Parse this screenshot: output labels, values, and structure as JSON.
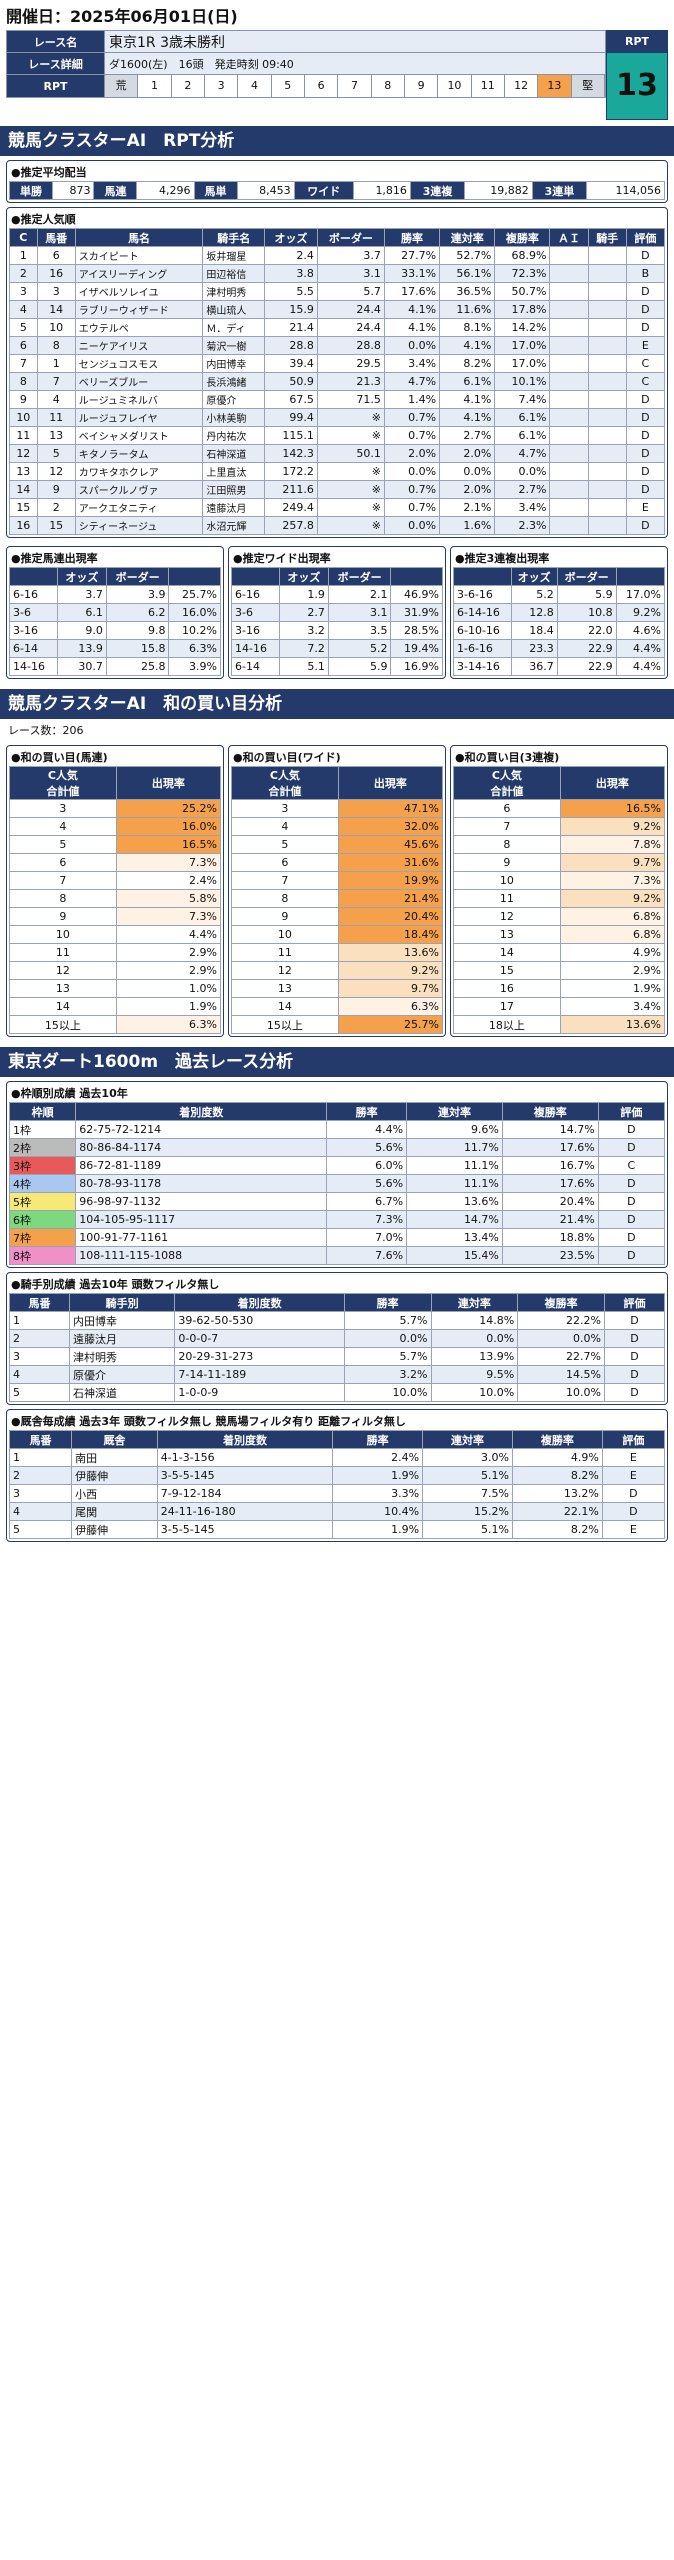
{
  "header": {
    "date": "開催日：2025年06月01日(日)",
    "race_label": "レース名",
    "race_name": "東京1R 3歳未勝利",
    "detail_label": "レース詳細",
    "detail_course": "ダ1600(左)",
    "detail_heads": "16頭",
    "detail_start": "発走時刻 09:40",
    "rpt_label": "RPT",
    "rpt_row": [
      "荒",
      "1",
      "2",
      "3",
      "4",
      "5",
      "6",
      "7",
      "8",
      "9",
      "10",
      "11",
      "12",
      "13",
      "堅"
    ],
    "rpt_value": "13",
    "rpt_highlight_index": 13
  },
  "section1": {
    "title": "競馬クラスターAI　RPT分析",
    "payout_title": "●推定平均配当",
    "payouts": [
      [
        "単勝",
        "873"
      ],
      [
        "馬連",
        "4,296"
      ],
      [
        "馬単",
        "8,453"
      ],
      [
        "ワイド",
        "1,816"
      ],
      [
        "3連複",
        "19,882"
      ],
      [
        "3連単",
        "114,056"
      ]
    ]
  },
  "popularity": {
    "title": "●推定人気順",
    "headers": [
      "C",
      "馬番",
      "馬名",
      "騎手名",
      "オッズ",
      "ボーダー",
      "勝率",
      "連対率",
      "複勝率",
      "ＡＩ",
      "騎手",
      "評価"
    ],
    "rows": [
      [
        "1",
        "6",
        "スカイピート",
        "坂井瑠星",
        "2.4",
        "3.7",
        "27.7%",
        "52.7%",
        "68.9%",
        "",
        "",
        "D"
      ],
      [
        "2",
        "16",
        "アイスリーディング",
        "田辺裕信",
        "3.8",
        "3.1",
        "33.1%",
        "56.1%",
        "72.3%",
        "",
        "",
        "B"
      ],
      [
        "3",
        "3",
        "イザベルソレイユ",
        "津村明秀",
        "5.5",
        "5.7",
        "17.6%",
        "36.5%",
        "50.7%",
        "",
        "",
        "D"
      ],
      [
        "4",
        "14",
        "ラブリーウィザード",
        "横山琉人",
        "15.9",
        "24.4",
        "4.1%",
        "11.6%",
        "17.8%",
        "",
        "",
        "D"
      ],
      [
        "5",
        "10",
        "エウテルペ",
        "Ｍ．ディ",
        "21.4",
        "24.4",
        "4.1%",
        "8.1%",
        "14.2%",
        "",
        "",
        "D"
      ],
      [
        "6",
        "8",
        "ニーケアイリス",
        "菊沢一樹",
        "28.8",
        "28.8",
        "0.0%",
        "4.1%",
        "17.0%",
        "",
        "",
        "E"
      ],
      [
        "7",
        "1",
        "センジュコスモス",
        "内田博幸",
        "39.4",
        "29.5",
        "3.4%",
        "8.2%",
        "17.0%",
        "",
        "",
        "C"
      ],
      [
        "8",
        "7",
        "ベリーズブルー",
        "長浜鴻緒",
        "50.9",
        "21.3",
        "4.7%",
        "6.1%",
        "10.1%",
        "",
        "",
        "C"
      ],
      [
        "9",
        "4",
        "ルージュミネルバ",
        "原優介",
        "67.5",
        "71.5",
        "1.4%",
        "4.1%",
        "7.4%",
        "",
        "",
        "D"
      ],
      [
        "10",
        "11",
        "ルージュフレイヤ",
        "小林美駒",
        "99.4",
        "※",
        "0.7%",
        "4.1%",
        "6.1%",
        "",
        "",
        "D"
      ],
      [
        "11",
        "13",
        "ベイシャメダリスト",
        "丹内祐次",
        "115.1",
        "※",
        "0.7%",
        "2.7%",
        "6.1%",
        "",
        "",
        "D"
      ],
      [
        "12",
        "5",
        "キタノラータム",
        "石神深道",
        "142.3",
        "50.1",
        "2.0%",
        "2.0%",
        "4.7%",
        "",
        "",
        "D"
      ],
      [
        "13",
        "12",
        "カワキタホクレア",
        "上里直汰",
        "172.2",
        "※",
        "0.0%",
        "0.0%",
        "0.0%",
        "",
        "",
        "D"
      ],
      [
        "14",
        "9",
        "スパークルノヴァ",
        "江田照男",
        "211.6",
        "※",
        "0.7%",
        "2.0%",
        "2.7%",
        "",
        "",
        "D"
      ],
      [
        "15",
        "2",
        "アークエタニティ",
        "遠藤汰月",
        "249.4",
        "※",
        "0.7%",
        "2.1%",
        "3.4%",
        "",
        "",
        "E"
      ],
      [
        "16",
        "15",
        "シティーネージュ",
        "水沼元輝",
        "257.8",
        "※",
        "0.0%",
        "1.6%",
        "2.3%",
        "",
        "",
        "D"
      ]
    ]
  },
  "est3": [
    {
      "title": "●推定馬連出現率",
      "headers": [
        "",
        "オッズ",
        "ボーダー",
        ""
      ],
      "rows": [
        [
          "6-16",
          "3.7",
          "3.9",
          "25.7%"
        ],
        [
          "3-6",
          "6.1",
          "6.2",
          "16.0%"
        ],
        [
          "3-16",
          "9.0",
          "9.8",
          "10.2%"
        ],
        [
          "6-14",
          "13.9",
          "15.8",
          "6.3%"
        ],
        [
          "14-16",
          "30.7",
          "25.8",
          "3.9%"
        ]
      ]
    },
    {
      "title": "●推定ワイド出現率",
      "headers": [
        "",
        "オッズ",
        "ボーダー",
        ""
      ],
      "rows": [
        [
          "6-16",
          "1.9",
          "2.1",
          "46.9%"
        ],
        [
          "3-6",
          "2.7",
          "3.1",
          "31.9%"
        ],
        [
          "3-16",
          "3.2",
          "3.5",
          "28.5%"
        ],
        [
          "14-16",
          "7.2",
          "5.2",
          "19.4%"
        ],
        [
          "6-14",
          "5.1",
          "5.9",
          "16.9%"
        ]
      ]
    },
    {
      "title": "●推定3連複出現率",
      "headers": [
        "",
        "オッズ",
        "ボーダー",
        ""
      ],
      "rows": [
        [
          "3-6-16",
          "5.2",
          "5.9",
          "17.0%"
        ],
        [
          "6-14-16",
          "12.8",
          "10.8",
          "9.2%"
        ],
        [
          "6-10-16",
          "18.4",
          "22.0",
          "4.6%"
        ],
        [
          "1-6-16",
          "23.3",
          "22.9",
          "4.4%"
        ],
        [
          "3-14-16",
          "36.7",
          "22.9",
          "4.4%"
        ]
      ]
    }
  ],
  "section2": {
    "title": "競馬クラスターAI　和の買い目分析",
    "count": "レース数：206"
  },
  "wa3": [
    {
      "title": "●和の買い目(馬連)",
      "headers": [
        "C人気\n合計値",
        "出現率"
      ],
      "rows": [
        [
          "3",
          "25.2%"
        ],
        [
          "4",
          "16.0%"
        ],
        [
          "5",
          "16.5%"
        ],
        [
          "6",
          "7.3%"
        ],
        [
          "7",
          "2.4%"
        ],
        [
          "8",
          "5.8%"
        ],
        [
          "9",
          "7.3%"
        ],
        [
          "10",
          "4.4%"
        ],
        [
          "11",
          "2.9%"
        ],
        [
          "12",
          "2.9%"
        ],
        [
          "13",
          "1.0%"
        ],
        [
          "14",
          "1.9%"
        ],
        [
          "15以上",
          "6.3%"
        ]
      ]
    },
    {
      "title": "●和の買い目(ワイド)",
      "headers": [
        "C人気\n合計値",
        "出現率"
      ],
      "rows": [
        [
          "3",
          "47.1%"
        ],
        [
          "4",
          "32.0%"
        ],
        [
          "5",
          "45.6%"
        ],
        [
          "6",
          "31.6%"
        ],
        [
          "7",
          "19.9%"
        ],
        [
          "8",
          "21.4%"
        ],
        [
          "9",
          "20.4%"
        ],
        [
          "10",
          "18.4%"
        ],
        [
          "11",
          "13.6%"
        ],
        [
          "12",
          "9.2%"
        ],
        [
          "13",
          "9.7%"
        ],
        [
          "14",
          "6.3%"
        ],
        [
          "15以上",
          "25.7%"
        ]
      ]
    },
    {
      "title": "●和の買い目(3連複)",
      "headers": [
        "C人気\n合計値",
        "出現率"
      ],
      "rows": [
        [
          "6",
          "16.5%"
        ],
        [
          "7",
          "9.2%"
        ],
        [
          "8",
          "7.8%"
        ],
        [
          "9",
          "9.7%"
        ],
        [
          "10",
          "7.3%"
        ],
        [
          "11",
          "9.2%"
        ],
        [
          "12",
          "6.8%"
        ],
        [
          "13",
          "6.8%"
        ],
        [
          "14",
          "4.9%"
        ],
        [
          "15",
          "2.9%"
        ],
        [
          "16",
          "1.9%"
        ],
        [
          "17",
          "3.4%"
        ],
        [
          "18以上",
          "13.6%"
        ]
      ]
    }
  ],
  "section3": {
    "title": "東京ダート1600m　過去レース分析"
  },
  "waku": {
    "title": "●枠順別成績 過去10年",
    "headers": [
      "枠順",
      "着別度数",
      "勝率",
      "連対率",
      "複勝率",
      "評価"
    ],
    "rows": [
      [
        "1枠",
        "62-75-72-1214",
        "4.4%",
        "9.6%",
        "14.7%",
        "D"
      ],
      [
        "2枠",
        "80-86-84-1174",
        "5.6%",
        "11.7%",
        "17.6%",
        "D"
      ],
      [
        "3枠",
        "86-72-81-1189",
        "6.0%",
        "11.1%",
        "16.7%",
        "C"
      ],
      [
        "4枠",
        "80-78-93-1178",
        "5.6%",
        "11.1%",
        "17.6%",
        "D"
      ],
      [
        "5枠",
        "96-98-97-1132",
        "6.7%",
        "13.6%",
        "20.4%",
        "D"
      ],
      [
        "6枠",
        "104-105-95-1117",
        "7.3%",
        "14.7%",
        "21.4%",
        "D"
      ],
      [
        "7枠",
        "100-91-77-1161",
        "7.0%",
        "13.4%",
        "18.8%",
        "D"
      ],
      [
        "8枠",
        "108-111-115-1088",
        "7.6%",
        "15.4%",
        "23.5%",
        "D"
      ]
    ]
  },
  "jockey": {
    "title": "●騎手別成績 過去10年 頭数フィルタ無し",
    "headers": [
      "馬番",
      "騎手別",
      "着別度数",
      "勝率",
      "連対率",
      "複勝率",
      "評価"
    ],
    "rows": [
      [
        "1",
        "内田博幸",
        "39-62-50-530",
        "5.7%",
        "14.8%",
        "22.2%",
        "D"
      ],
      [
        "2",
        "遠藤汰月",
        "0-0-0-7",
        "0.0%",
        "0.0%",
        "0.0%",
        "D"
      ],
      [
        "3",
        "津村明秀",
        "20-29-31-273",
        "5.7%",
        "13.9%",
        "22.7%",
        "D"
      ],
      [
        "4",
        "原優介",
        "7-14-11-189",
        "3.2%",
        "9.5%",
        "14.5%",
        "D"
      ],
      [
        "5",
        "石神深道",
        "1-0-0-9",
        "10.0%",
        "10.0%",
        "10.0%",
        "D"
      ]
    ]
  },
  "sire": {
    "title": "●厩舎毎成績 過去3年 頭数フィルタ無し 競馬場フィルタ有り 距離フィルタ無し",
    "headers": [
      "馬番",
      "厩舎",
      "着別度数",
      "勝率",
      "連対率",
      "複勝率",
      "評価"
    ],
    "rows": [
      [
        "1",
        "南田",
        "4-1-3-156",
        "2.4%",
        "3.0%",
        "4.9%",
        "E"
      ],
      [
        "2",
        "伊藤伸",
        "3-5-5-145",
        "1.9%",
        "5.1%",
        "8.2%",
        "E"
      ],
      [
        "3",
        "小西",
        "7-9-12-184",
        "3.3%",
        "7.5%",
        "13.2%",
        "D"
      ],
      [
        "4",
        "尾関",
        "24-11-16-180",
        "10.4%",
        "15.2%",
        "22.1%",
        "D"
      ],
      [
        "5",
        "伊藤伸",
        "3-5-5-145",
        "1.9%",
        "5.1%",
        "8.2%",
        "E"
      ]
    ]
  }
}
